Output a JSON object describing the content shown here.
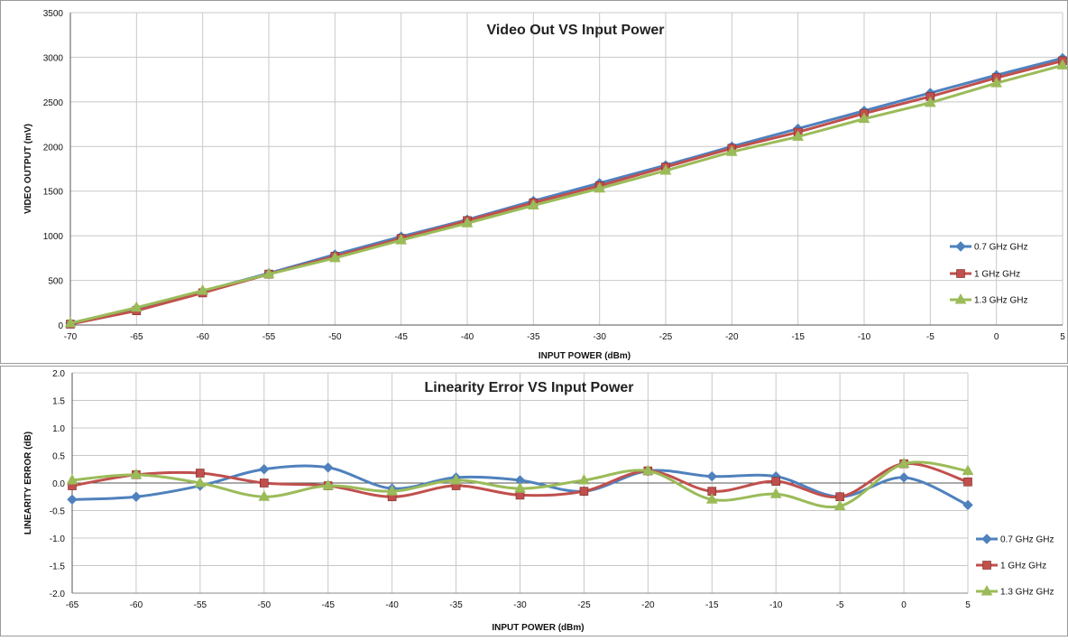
{
  "chart_data": [
    {
      "type": "line",
      "title": "Video Out VS Input Power",
      "xlabel": "INPUT POWER (dBm)",
      "ylabel": "VIDEO OUTPUT (mV)",
      "xlim": [
        -70,
        5
      ],
      "ylim": [
        0,
        3500
      ],
      "x_ticks": [
        -70,
        -65,
        -60,
        -55,
        -50,
        -45,
        -40,
        -35,
        -30,
        -25,
        -20,
        -15,
        -10,
        -5,
        0,
        5
      ],
      "y_ticks": [
        0,
        500,
        1000,
        1500,
        2000,
        2500,
        3000,
        3500
      ],
      "grid": true,
      "legend_position": "right",
      "smooth": false,
      "x": [
        -70,
        -65,
        -60,
        -55,
        -50,
        -45,
        -40,
        -35,
        -30,
        -25,
        -20,
        -15,
        -10,
        -5,
        0,
        5
      ],
      "series": [
        {
          "name": "0.7 GHz GHz",
          "color": "#4f81bd",
          "marker": "diamond",
          "values": [
            20,
            190,
            380,
            580,
            790,
            990,
            1180,
            1390,
            1590,
            1790,
            2000,
            2200,
            2400,
            2600,
            2800,
            2990
          ]
        },
        {
          "name": "1 GHz GHz",
          "color": "#c0504d",
          "marker": "square",
          "values": [
            10,
            160,
            360,
            570,
            770,
            970,
            1170,
            1370,
            1560,
            1770,
            1980,
            2160,
            2370,
            2560,
            2770,
            2960
          ]
        },
        {
          "name": "1.3 GHz GHz",
          "color": "#9bbb59",
          "marker": "triangle",
          "values": [
            20,
            195,
            385,
            570,
            750,
            950,
            1140,
            1340,
            1530,
            1730,
            1940,
            2110,
            2310,
            2490,
            2710,
            2910
          ]
        }
      ]
    },
    {
      "type": "line",
      "title": "Linearity Error VS Input Power",
      "xlabel": "INPUT POWER (dBm)",
      "ylabel": "LINEARITY ERROR (dB)",
      "xlim": [
        -65,
        5
      ],
      "ylim": [
        -2.0,
        2.0
      ],
      "x_ticks": [
        -65,
        -60,
        -55,
        -50,
        -45,
        -40,
        -35,
        -30,
        -25,
        -20,
        -15,
        -10,
        -5,
        0,
        5
      ],
      "y_ticks": [
        "-2.0",
        "-1.5",
        "-1.0",
        "-0.5",
        "0.0",
        "0.5",
        "1.0",
        "1.5",
        "2.0"
      ],
      "grid": true,
      "legend_position": "right",
      "smooth": true,
      "x": [
        -65,
        -60,
        -55,
        -50,
        -45,
        -40,
        -35,
        -30,
        -25,
        -20,
        -15,
        -10,
        -5,
        0,
        5
      ],
      "series": [
        {
          "name": "0.7 GHz GHz",
          "color": "#4f81bd",
          "marker": "diamond",
          "values": [
            -0.3,
            -0.25,
            -0.05,
            0.25,
            0.28,
            -0.1,
            0.1,
            0.05,
            -0.15,
            0.22,
            0.12,
            0.12,
            -0.25,
            0.1,
            -0.4
          ]
        },
        {
          "name": "1 GHz GHz",
          "color": "#c0504d",
          "marker": "square",
          "values": [
            -0.05,
            0.15,
            0.18,
            0.0,
            -0.05,
            -0.25,
            -0.05,
            -0.22,
            -0.15,
            0.22,
            -0.15,
            0.03,
            -0.25,
            0.35,
            0.02
          ]
        },
        {
          "name": "1.3 GHz GHz",
          "color": "#9bbb59",
          "marker": "triangle",
          "values": [
            0.05,
            0.15,
            0.0,
            -0.25,
            -0.05,
            -0.15,
            0.05,
            -0.1,
            0.05,
            0.22,
            -0.3,
            -0.2,
            -0.42,
            0.35,
            0.22
          ]
        }
      ]
    }
  ]
}
